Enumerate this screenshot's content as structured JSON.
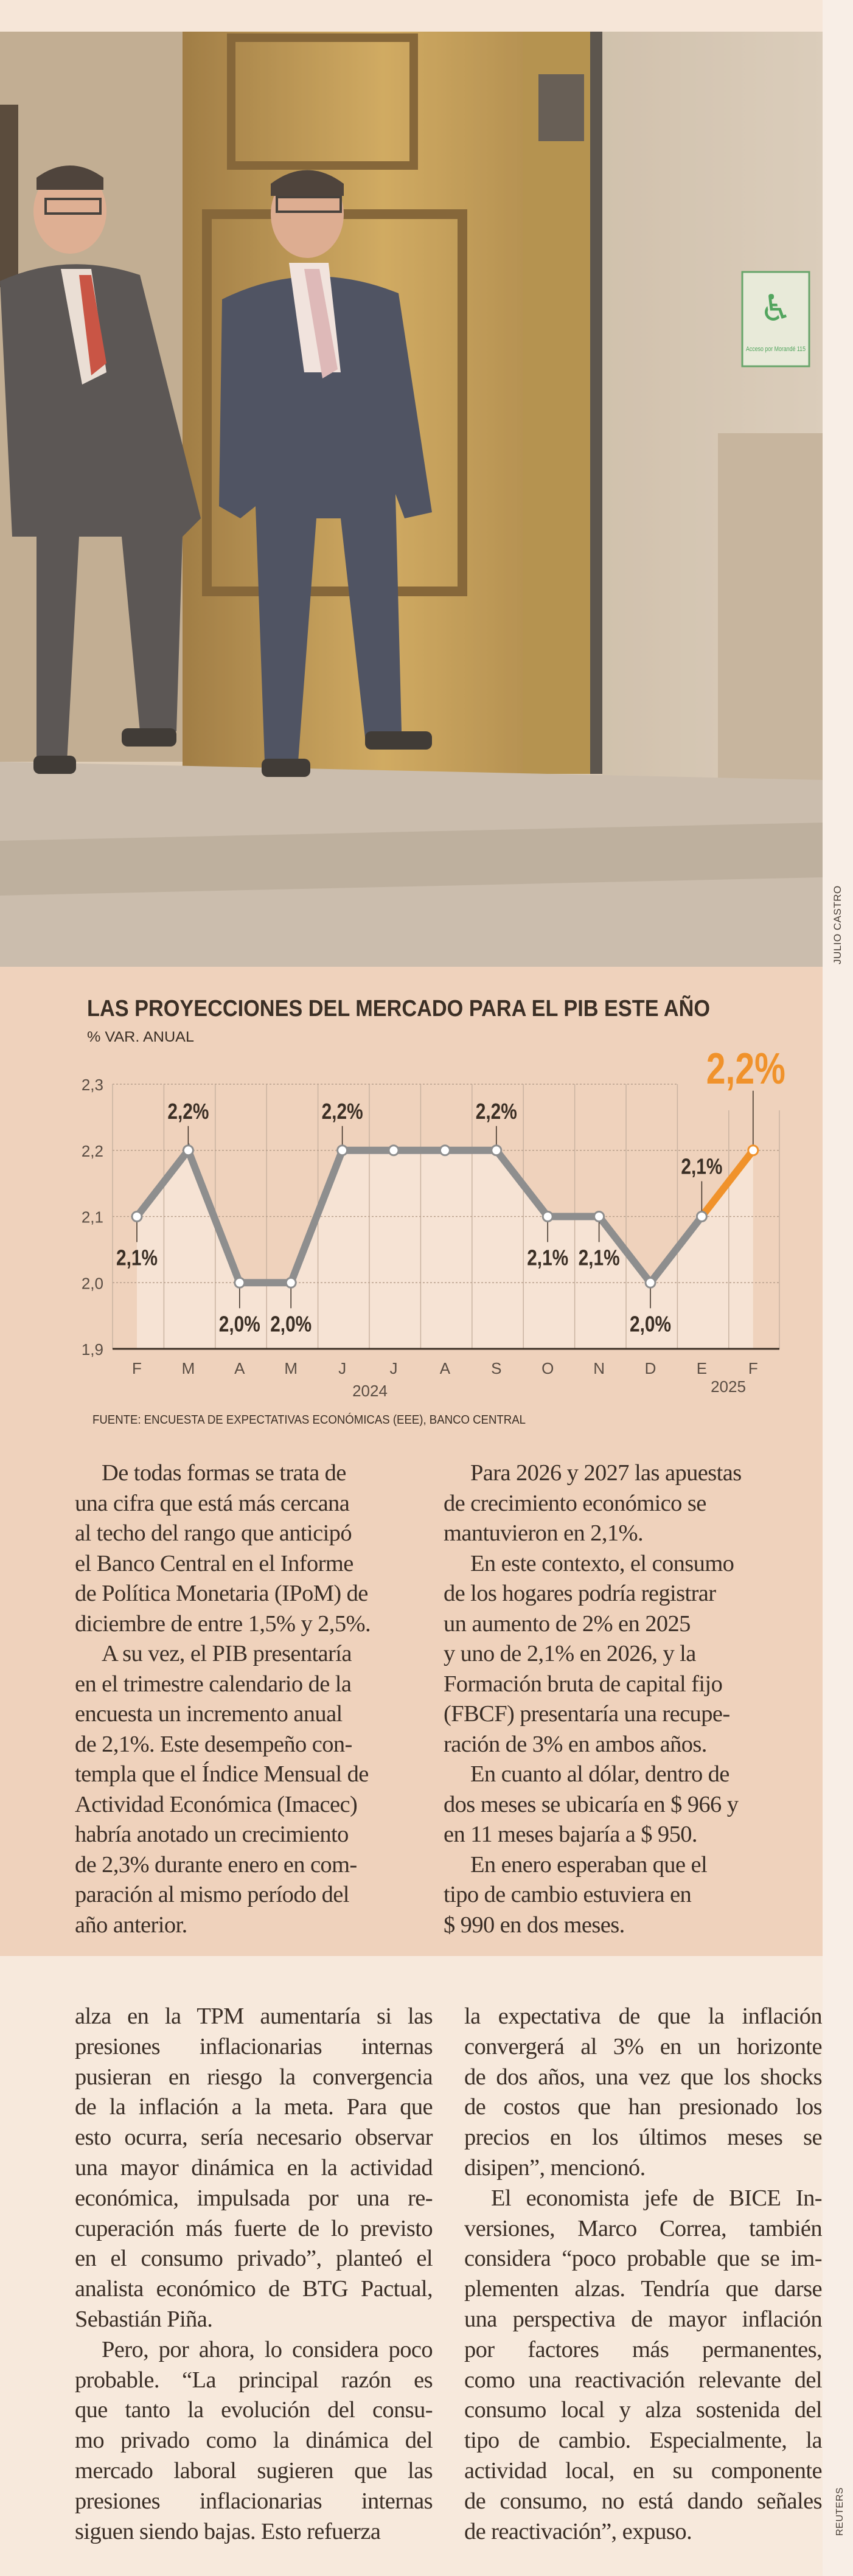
{
  "photo": {
    "credit": "JULIO CASTRO",
    "sign_text": "Acceso por Morandé 115",
    "colors": {
      "door": "#b8923f",
      "stone": "#cbbfae",
      "suit_left": "#3b3b3f",
      "suit_right": "#2c3850",
      "tie_left": "#c0392b",
      "tie_right": "#d9b3b8"
    }
  },
  "chart_data": {
    "type": "line",
    "title": "LAS PROYECCIONES DEL MERCADO PARA EL PIB ESTE AÑO",
    "subtitle": "% VAR. ANUAL",
    "categories": [
      "F",
      "M",
      "A",
      "M",
      "J",
      "J",
      "A",
      "S",
      "O",
      "N",
      "D",
      "E",
      "F"
    ],
    "year_labels": [
      {
        "label": "2024",
        "span": [
          0,
          10
        ]
      },
      {
        "label": "2025",
        "span": [
          11,
          12
        ]
      }
    ],
    "values": [
      2.1,
      2.2,
      2.0,
      2.0,
      2.2,
      2.2,
      2.2,
      2.2,
      2.1,
      2.1,
      2.0,
      2.1,
      2.2
    ],
    "data_labels": [
      "2,1%",
      "2,2%",
      "2,0%",
      "2,0%",
      "2,2%",
      "",
      "",
      "2,2%",
      "2,1%",
      "2,1%",
      "2,0%",
      "2,1%",
      "2,2%"
    ],
    "highlight_from_index": 11,
    "ylim": [
      1.9,
      2.3
    ],
    "yticks": [
      "1,9",
      "2,0",
      "2,1",
      "2,2",
      "2,3"
    ],
    "ytick_values": [
      1.9,
      2.0,
      2.1,
      2.2,
      2.3
    ],
    "grid": true,
    "source": "FUENTE: ENCUESTA DE EXPECTATIVAS ECONÓMICAS (EEE), BANCO CENTRAL",
    "colors": {
      "line": "#8e8e8e",
      "highlight": "#f0922b",
      "text": "#3b2f25",
      "background": "#efd2bc",
      "fill": "#f6e3d4"
    }
  },
  "article_top": {
    "left": [
      [
        "De todas formas se trata de",
        "una cifra que está más cercana",
        "al techo del rango que anticipó",
        "el Banco Central en el Informe",
        "de Política Monetaria (IPoM) de",
        "diciembre de entre 1,5% y 2,5%."
      ],
      [
        "A su vez, el PIB presentaría",
        "en el trimestre calendario de la",
        "encuesta un incremento anual",
        "de 2,1%. Este desempeño con-",
        "templa que el Índice Mensual de",
        "Actividad Económica (Imacec)",
        "habría anotado un crecimiento",
        "de 2,3% durante enero en com-",
        "paración al mismo período del",
        "año anterior."
      ]
    ],
    "right": [
      [
        "Para 2026 y 2027 las apuestas",
        "de crecimiento económico se",
        "mantuvieron en 2,1%."
      ],
      [
        "En este contexto, el consumo",
        "de los hogares podría registrar",
        "un aumento de 2% en 2025",
        "y uno de 2,1% en 2026, y la",
        "Formación bruta de capital fijo",
        "(FBCF) presentaría una recupe-",
        "ración de 3% en ambos años."
      ],
      [
        "En cuanto al dólar,  dentro de",
        "dos meses se ubicaría en $ 966 y",
        "en 11 meses bajaría a $ 950."
      ],
      [
        "En enero esperaban que el",
        "tipo de cambio estuviera en",
        "$ 990 en dos meses."
      ]
    ]
  },
  "article_bottom": {
    "credit": "REUTERS",
    "left": [
      [
        "alza en la TPM aumentaría si las",
        "presiones inflacionarias internas",
        "pusieran en riesgo la convergencia",
        "de la inflación a la meta. Para que",
        "esto ocurra, sería necesario observar",
        "una mayor dinámica en la actividad",
        "económica, impulsada por una re-",
        "cuperación más fuerte de lo previsto",
        "en el consumo privado”, planteó el",
        "analista económico de BTG Pactual,",
        "Sebastián Piña."
      ],
      [
        "Pero, por ahora, lo considera poco",
        "probable. “La principal razón es",
        "que tanto la evolución del consu-",
        "mo privado como la dinámica del",
        "mercado laboral sugieren que las",
        "presiones inflacionarias internas",
        "siguen siendo bajas. Esto refuerza"
      ]
    ],
    "right": [
      [
        "la expectativa de que la inflación",
        "convergerá al 3% en un horizonte",
        "de dos años, una vez que los shocks",
        "de costos que han presionado los",
        "precios en los últimos meses se",
        "disipen”, mencionó."
      ],
      [
        "El economista jefe de BICE In-",
        "versiones, Marco Correa, también",
        "considera “poco probable que se im-",
        "plementen alzas. Tendría que darse",
        "una perspectiva de mayor inflación",
        "por factores más permanentes,",
        "como una reactivación relevante del",
        "consumo local y alza sostenida del",
        "tipo de cambio. Especialmente, la",
        "actividad local, en su componente",
        "de consumo, no está dando señales",
        "de reactivación”, expuso."
      ]
    ]
  }
}
